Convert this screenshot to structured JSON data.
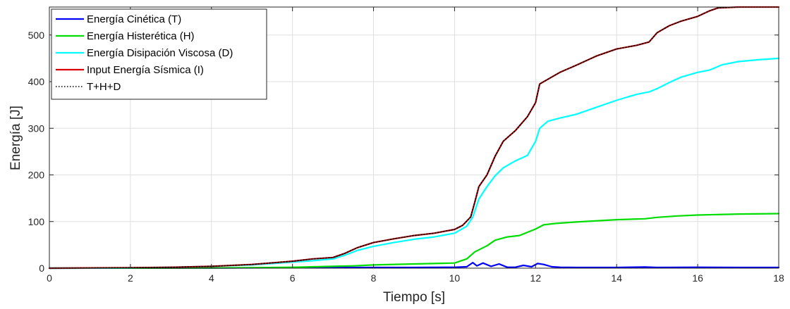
{
  "chart_data": {
    "type": "line",
    "xlabel": "Tiempo [s]",
    "ylabel": "Energía [J]",
    "xlim": [
      0,
      18
    ],
    "ylim": [
      0,
      560
    ],
    "xticks": [
      0,
      2,
      4,
      6,
      8,
      10,
      12,
      14,
      16,
      18
    ],
    "yticks": [
      0,
      100,
      200,
      300,
      400,
      500
    ],
    "grid": true,
    "legend_position": "top-left",
    "series": [
      {
        "name": "Energía Cinética (T)",
        "color": "#0000ff",
        "style": "solid",
        "x": [
          0,
          2,
          4,
          6,
          7,
          8,
          9,
          10,
          10.3,
          10.45,
          10.55,
          10.7,
          10.9,
          11.1,
          11.3,
          11.5,
          11.7,
          11.9,
          12.05,
          12.2,
          12.4,
          12.6,
          13,
          14,
          14.7,
          15,
          16,
          17,
          18
        ],
        "y": [
          0,
          0.2,
          0.5,
          1,
          1.5,
          1.5,
          1.5,
          2,
          3,
          12,
          5,
          11,
          4,
          9,
          2,
          2,
          6,
          3,
          10,
          8,
          3,
          2,
          1.5,
          1.5,
          2.5,
          1.5,
          2,
          1.5,
          1.5
        ]
      },
      {
        "name": "Energía Histerética (H)",
        "color": "#00dd00",
        "style": "solid",
        "x": [
          0,
          2,
          4,
          5,
          6,
          7,
          7.5,
          8,
          9,
          10,
          10.3,
          10.5,
          10.8,
          11,
          11.3,
          11.6,
          12,
          12.2,
          12.5,
          13,
          14,
          14.7,
          15,
          15.5,
          16,
          17,
          18
        ],
        "y": [
          0,
          0.2,
          0.5,
          1,
          2,
          4,
          5,
          7,
          9,
          11,
          20,
          35,
          48,
          60,
          67,
          70,
          84,
          93,
          96,
          99,
          104,
          106,
          109,
          112,
          114,
          116,
          117
        ]
      },
      {
        "name": "Energía Disipación Viscosa (D)",
        "color": "#00ffff",
        "style": "solid",
        "x": [
          0,
          2,
          3,
          4,
          5,
          6,
          6.5,
          7,
          7.3,
          7.6,
          8,
          8.5,
          9,
          9.5,
          10,
          10.3,
          10.45,
          10.6,
          10.8,
          11,
          11.2,
          11.5,
          11.8,
          12,
          12.1,
          12.3,
          12.6,
          13,
          13.5,
          14,
          14.5,
          14.8,
          15,
          15.3,
          15.6,
          16,
          16.3,
          16.6,
          17,
          17.5,
          18
        ],
        "y": [
          0,
          0.5,
          2,
          4,
          7,
          13,
          16,
          20,
          28,
          38,
          47,
          55,
          62,
          67,
          75,
          90,
          110,
          148,
          175,
          198,
          215,
          230,
          242,
          272,
          300,
          315,
          322,
          330,
          345,
          360,
          373,
          378,
          385,
          398,
          410,
          420,
          425,
          436,
          443,
          447,
          450
        ]
      },
      {
        "name": "Input Energía Sísmica (I)",
        "color": "#dd0000",
        "style": "solid",
        "x": [
          0,
          2,
          3,
          4,
          5,
          6,
          6.5,
          7,
          7.3,
          7.6,
          8,
          8.5,
          9,
          9.5,
          10,
          10.2,
          10.4,
          10.5,
          10.6,
          10.8,
          11,
          11.2,
          11.5,
          11.8,
          12,
          12.1,
          12.3,
          12.6,
          13,
          13.5,
          14,
          14.5,
          14.8,
          15,
          15.3,
          15.6,
          16,
          16.3,
          16.5,
          17,
          17.5,
          18
        ],
        "y": [
          0,
          1,
          2,
          4,
          8,
          15,
          20,
          23,
          32,
          44,
          55,
          63,
          70,
          75,
          83,
          92,
          110,
          142,
          175,
          200,
          240,
          272,
          295,
          325,
          355,
          395,
          405,
          420,
          435,
          455,
          470,
          478,
          485,
          505,
          520,
          530,
          540,
          552,
          558,
          563,
          566,
          568
        ]
      },
      {
        "name": "T+H+D",
        "color": "#000000",
        "style": "dotted",
        "x": [
          0,
          2,
          3,
          4,
          5,
          6,
          6.5,
          7,
          7.3,
          7.6,
          8,
          8.5,
          9,
          9.5,
          10,
          10.2,
          10.4,
          10.5,
          10.6,
          10.8,
          11,
          11.2,
          11.5,
          11.8,
          12,
          12.1,
          12.3,
          12.6,
          13,
          13.5,
          14,
          14.5,
          14.8,
          15,
          15.3,
          15.6,
          16,
          16.3,
          16.5,
          17,
          17.5,
          18
        ],
        "y": [
          0,
          1,
          2,
          4,
          8,
          15,
          20,
          23,
          32,
          44,
          55,
          63,
          70,
          75,
          83,
          92,
          110,
          142,
          175,
          200,
          240,
          272,
          295,
          325,
          355,
          395,
          405,
          420,
          435,
          455,
          470,
          478,
          485,
          505,
          520,
          530,
          540,
          552,
          558,
          563,
          566,
          568
        ]
      }
    ]
  }
}
